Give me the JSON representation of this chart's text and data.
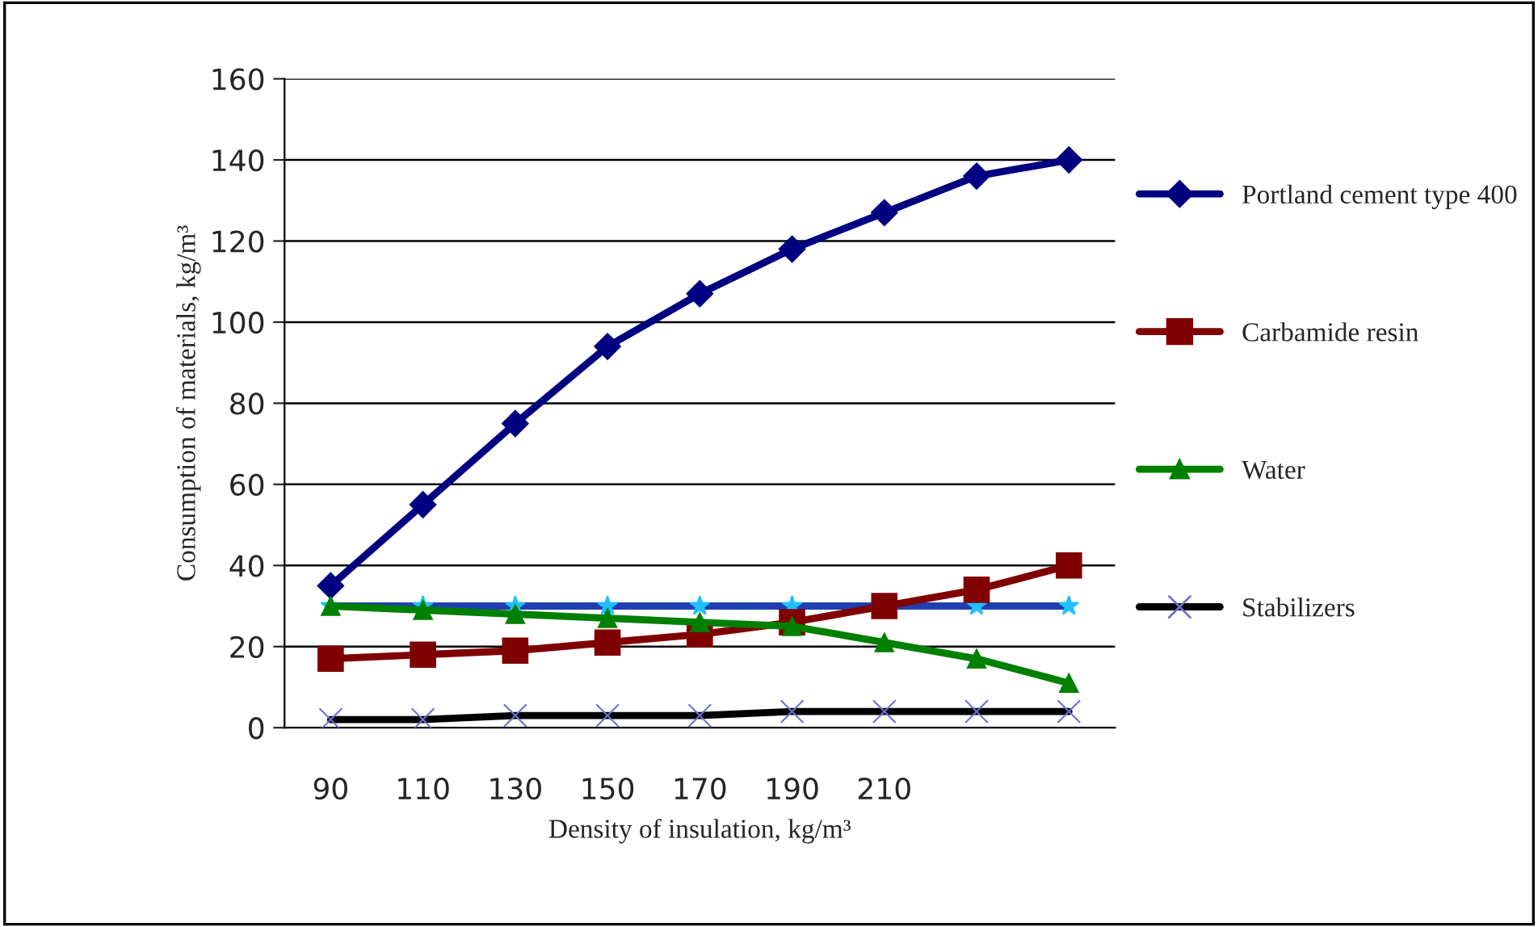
{
  "chart_data": {
    "type": "line",
    "xlabel": "Density of insulation, kg/m³",
    "ylabel": "Consumption of materials, kg/m³",
    "categories": [
      "90",
      "110",
      "130",
      "150",
      "170",
      "190",
      "210",
      null,
      null
    ],
    "ylim": [
      0,
      160
    ],
    "yticks": [
      0,
      20,
      40,
      60,
      80,
      100,
      120,
      140,
      160
    ],
    "grid": "y",
    "legend": "right",
    "line_style": "solid",
    "series": [
      {
        "name": "Portland cement type 400",
        "color": "#000080",
        "marker": "diamond",
        "values": [
          35,
          55,
          75,
          94,
          107,
          118,
          127,
          136,
          140
        ]
      },
      {
        "name": "Carbamide resin",
        "color": "#800000",
        "marker": "square",
        "values": [
          17,
          18,
          19,
          21,
          23,
          26,
          30,
          34,
          40
        ]
      },
      {
        "name": "Water",
        "color": "#008000",
        "marker": "triangle",
        "values": [
          30,
          29,
          28,
          27,
          26,
          25,
          21,
          17,
          11
        ]
      },
      {
        "name": "Stabilizers",
        "color": "#000000",
        "marker": "cross",
        "values": [
          2,
          2,
          3,
          3,
          3,
          4,
          4,
          4,
          4
        ]
      },
      {
        "color": "#1f3fb0",
        "marker": "star",
        "values": [
          30,
          30,
          30,
          30,
          30,
          30,
          30,
          30,
          30
        ]
      }
    ]
  }
}
